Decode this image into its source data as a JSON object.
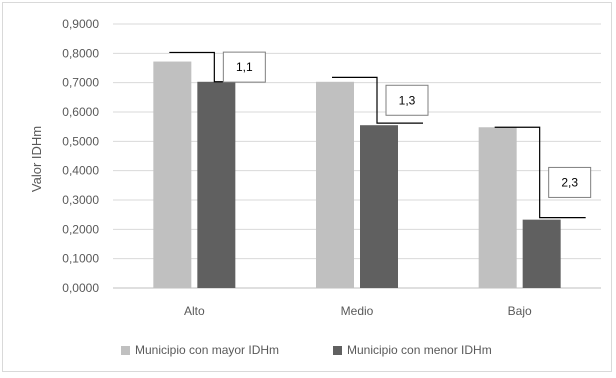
{
  "chart_data": {
    "type": "bar",
    "title": "",
    "xlabel": "",
    "ylabel": "Valor IDHm",
    "ylim": [
      0,
      0.9
    ],
    "yticks": [
      "0,0000",
      "0,1000",
      "0,2000",
      "0,3000",
      "0,4000",
      "0,5000",
      "0,6000",
      "0,7000",
      "0,8000",
      "0,9000"
    ],
    "ytick_values": [
      0,
      0.1,
      0.2,
      0.3,
      0.4,
      0.5,
      0.6,
      0.7,
      0.8,
      0.9
    ],
    "grid": true,
    "legend_position": "bottom",
    "categories": [
      "Alto",
      "Medio",
      "Bajo"
    ],
    "series": [
      {
        "name": "Municipio con mayor IDHm",
        "values": [
          0.772,
          0.703,
          0.548
        ],
        "color": "#c0c0c0"
      },
      {
        "name": "Municipio con menor IDHm",
        "values": [
          0.703,
          0.555,
          0.233
        ],
        "color": "#606060"
      }
    ],
    "annotations": [
      {
        "category": "Alto",
        "label": "1,1",
        "top": 0.803,
        "bottom": 0.703
      },
      {
        "category": "Medio",
        "label": "1,3",
        "top": 0.718,
        "bottom": 0.562
      },
      {
        "category": "Bajo",
        "label": "2,3",
        "top": 0.548,
        "bottom": 0.24
      }
    ]
  }
}
